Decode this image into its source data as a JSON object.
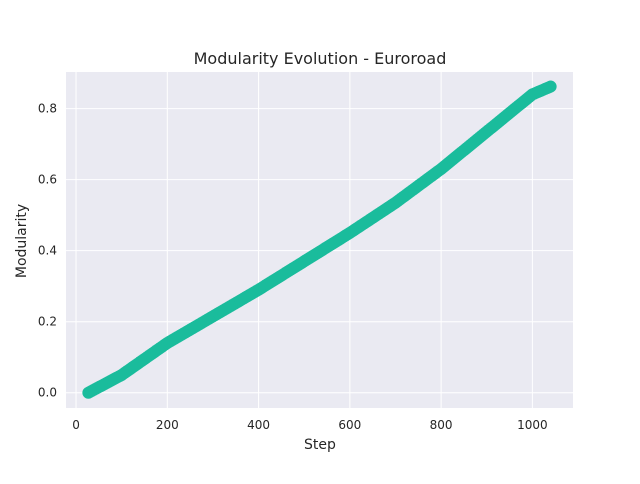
{
  "chart_data": {
    "type": "scatter",
    "title": "Modularity Evolution - Euroroad",
    "xlabel": "Step",
    "ylabel": "Modularity",
    "xlim": [
      -22,
      1089
    ],
    "ylim": [
      -0.043,
      0.903
    ],
    "x_ticks": [
      0,
      200,
      400,
      600,
      800,
      1000
    ],
    "y_ticks": [
      0.0,
      0.2,
      0.4,
      0.6,
      0.8
    ],
    "y_tick_labels": [
      "0.0",
      "0.2",
      "0.4",
      "0.6",
      "0.8"
    ],
    "grid": true,
    "legend": "none",
    "background": "#eaeaf2",
    "series": [
      {
        "color": "#1abc9c",
        "points": [
          [
            27,
            0.0
          ],
          [
            100,
            0.05
          ],
          [
            200,
            0.14
          ],
          [
            300,
            0.215
          ],
          [
            400,
            0.29
          ],
          [
            500,
            0.37
          ],
          [
            600,
            0.45
          ],
          [
            700,
            0.535
          ],
          [
            800,
            0.63
          ],
          [
            900,
            0.735
          ],
          [
            1000,
            0.84
          ],
          [
            1040,
            0.862
          ]
        ]
      }
    ]
  }
}
